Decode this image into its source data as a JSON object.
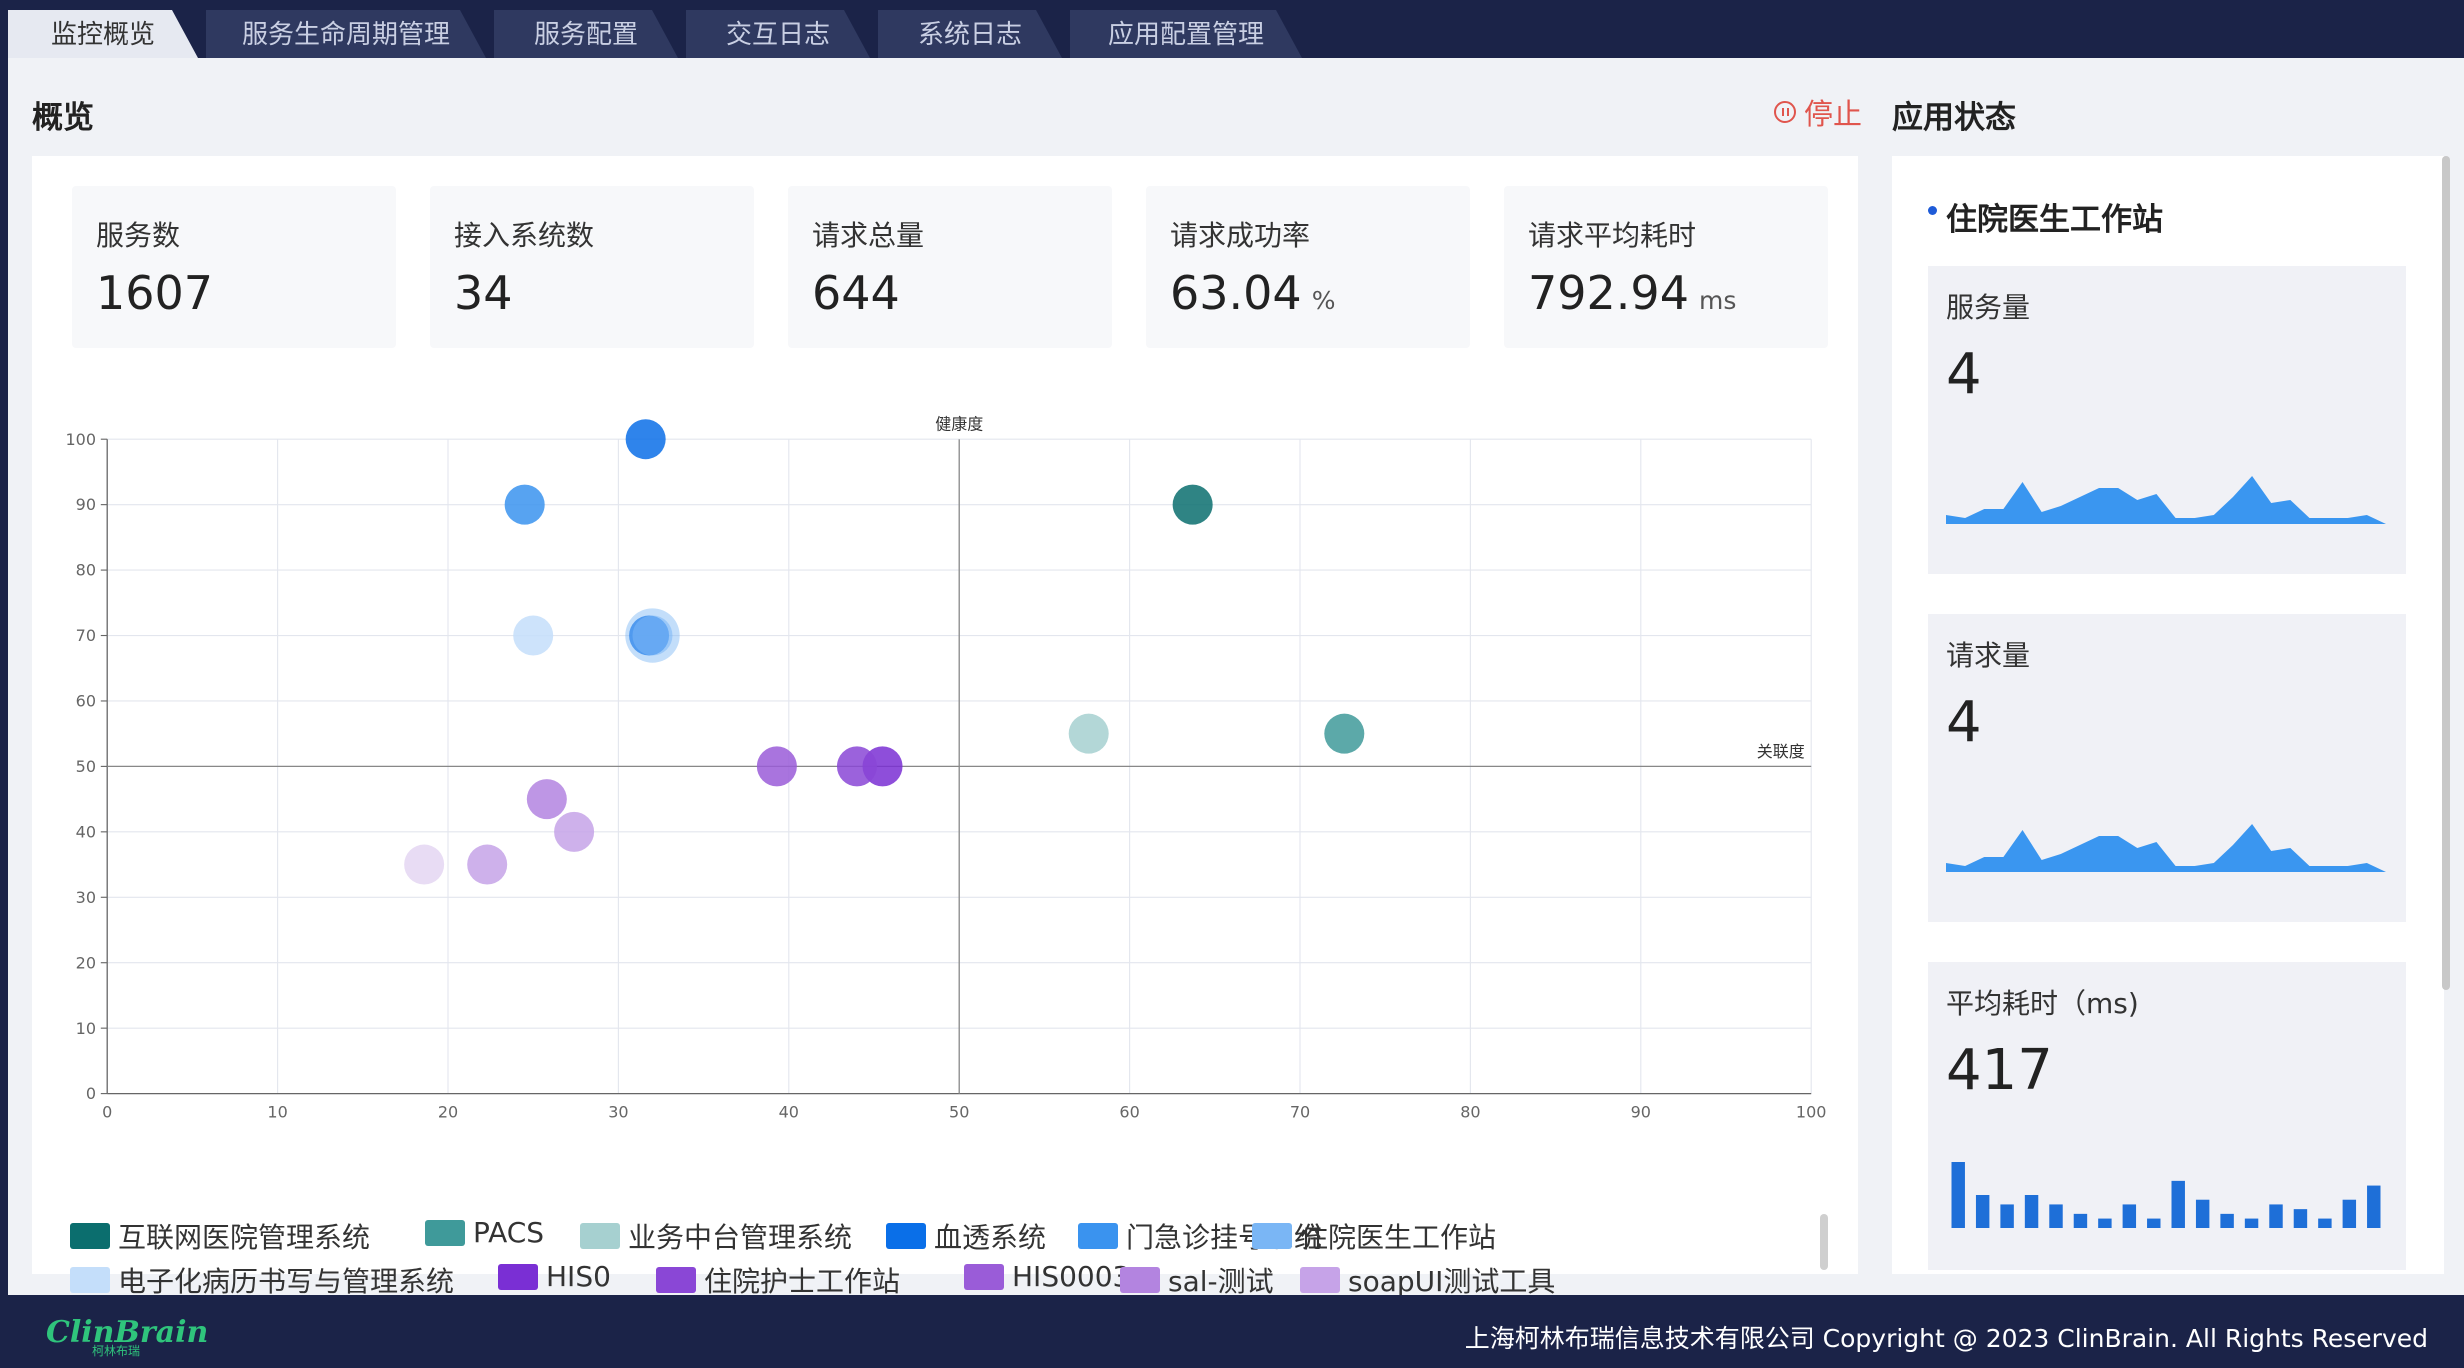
{
  "tabs": [
    {
      "label": "监控概览",
      "active": true
    },
    {
      "label": "服务生命周期管理",
      "active": false
    },
    {
      "label": "服务配置",
      "active": false
    },
    {
      "label": "交互日志",
      "active": false
    },
    {
      "label": "系统日志",
      "active": false
    },
    {
      "label": "应用配置管理",
      "active": false
    }
  ],
  "overview": {
    "title": "概览",
    "stop_label": "停止",
    "stats": [
      {
        "label": "服务数",
        "value": "1607",
        "unit": ""
      },
      {
        "label": "接入系统数",
        "value": "34",
        "unit": ""
      },
      {
        "label": "请求总量",
        "value": "644",
        "unit": ""
      },
      {
        "label": "请求成功率",
        "value": "63.04",
        "unit": "%"
      },
      {
        "label": "请求平均耗时",
        "value": "792.94",
        "unit": "ms"
      }
    ]
  },
  "chart_data": {
    "type": "scatter",
    "xlabel": "关联度",
    "ylabel": "健康度",
    "xlim": [
      0,
      100
    ],
    "ylim": [
      0,
      100
    ],
    "x_ticks": [
      0,
      10,
      20,
      30,
      40,
      50,
      60,
      70,
      80,
      90,
      100
    ],
    "y_ticks": [
      0,
      10,
      20,
      30,
      40,
      50,
      60,
      70,
      80,
      90,
      100
    ],
    "grid": true,
    "quadrant_lines": {
      "x": 50,
      "y": 50
    },
    "legend_position": "bottom",
    "series": [
      {
        "name": "互联网医院管理系统",
        "color": "#0b6e6e",
        "points": [
          [
            63.7,
            90
          ]
        ]
      },
      {
        "name": "PACS",
        "color": "#3f9a9a",
        "points": [
          [
            72.6,
            55
          ]
        ]
      },
      {
        "name": "业务中台管理系统",
        "color": "#a6d0d0",
        "points": [
          [
            57.6,
            55
          ]
        ]
      },
      {
        "name": "血透系统",
        "color": "#0a6fe8",
        "points": [
          [
            31.6,
            100
          ],
          [
            31.8,
            70
          ]
        ]
      },
      {
        "name": "门急诊挂号系统",
        "color": "#3a93ef",
        "points": [
          [
            24.5,
            90
          ]
        ]
      },
      {
        "name": "住院医生工作站",
        "color": "#7ab6f5",
        "points": [
          [
            32.0,
            70
          ]
        ]
      },
      {
        "name": "电子化病历书写与管理系统",
        "color": "#c4defa",
        "points": [
          [
            25.0,
            70
          ]
        ]
      },
      {
        "name": "HIS0",
        "color": "#7a2fd4",
        "points": [
          [
            45.5,
            50
          ]
        ]
      },
      {
        "name": "住院护士工作站",
        "color": "#8a47d6",
        "points": [
          [
            44.0,
            50
          ]
        ]
      },
      {
        "name": "HIS0003",
        "color": "#9a5cd8",
        "points": [
          [
            39.3,
            50
          ]
        ]
      },
      {
        "name": "sal-测试",
        "color": "#b384e0",
        "points": [
          [
            25.8,
            45
          ]
        ]
      },
      {
        "name": "soapUI测试工具",
        "color": "#c6a3e8",
        "points": [
          [
            27.4,
            40
          ],
          [
            22.3,
            35
          ]
        ]
      },
      {
        "name": "",
        "color": "#e4d6f2",
        "points": [
          [
            18.6,
            35
          ]
        ]
      }
    ]
  },
  "app_status": {
    "title": "应用状态",
    "app_name": "住院医生工作站",
    "cards": [
      {
        "label": "服务量",
        "value": "4",
        "spark": "area",
        "spark_values": [
          3,
          2,
          5,
          5,
          14,
          4,
          6,
          9,
          12,
          12,
          8,
          10,
          2,
          2,
          3,
          9,
          16,
          7,
          8,
          2,
          2,
          2,
          3,
          0
        ]
      },
      {
        "label": "请求量",
        "value": "4",
        "spark": "area",
        "spark_values": [
          3,
          2,
          5,
          5,
          14,
          4,
          6,
          9,
          12,
          12,
          8,
          10,
          2,
          2,
          3,
          9,
          16,
          7,
          8,
          2,
          2,
          2,
          3,
          0
        ]
      },
      {
        "label": "平均耗时（ms)",
        "value": "417",
        "spark": "bar",
        "spark_values": [
          14,
          7,
          5,
          7,
          5,
          3,
          2,
          5,
          2,
          10,
          6,
          3,
          2,
          5,
          4,
          2,
          6,
          9
        ]
      }
    ]
  },
  "footer": {
    "logo": "ClinBrain",
    "logo_sub": "柯林布瑞",
    "copyright": "上海柯林布瑞信息技术有限公司 Copyright @ 2023 ClinBrain. All Rights Reserved"
  }
}
